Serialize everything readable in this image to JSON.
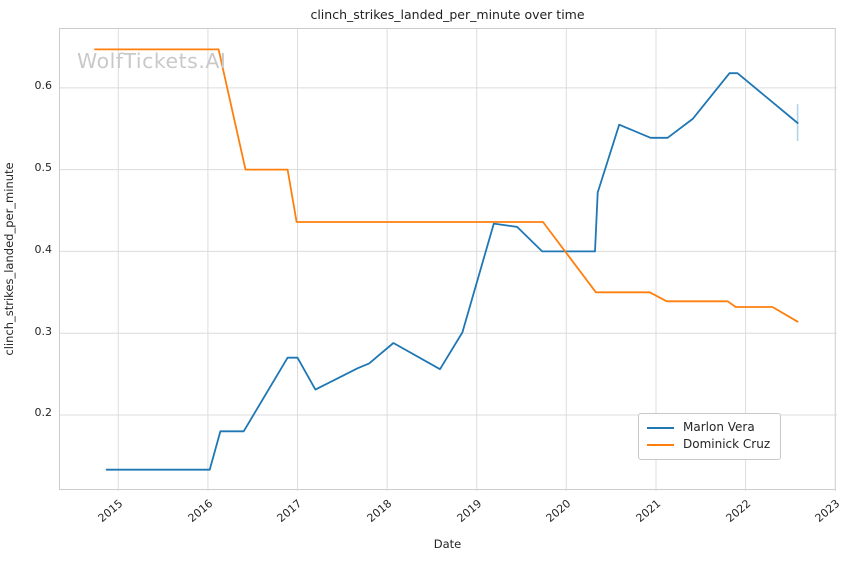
{
  "chart_data": {
    "type": "line",
    "title": "clinch_strikes_landed_per_minute over time",
    "xlabel": "Date",
    "ylabel": "clinch_strikes_landed_per_minute",
    "watermark": "WolfTickets.AI",
    "xlim": [
      2014.35,
      2023.02
    ],
    "ylim": [
      0.107,
      0.672
    ],
    "x_ticks": [
      2015,
      2016,
      2017,
      2018,
      2019,
      2020,
      2021,
      2022,
      2023
    ],
    "y_ticks": [
      0.2,
      0.3,
      0.4,
      0.5,
      0.6
    ],
    "grid": true,
    "legend_position": "lower right",
    "colors": {
      "grid": "#dcdcdc",
      "spine": "#cccccc",
      "text": "#262626",
      "watermark": "#c9c9c9",
      "background": "#ffffff"
    },
    "series": [
      {
        "name": "Marlon Vera",
        "color": "#1f77b4",
        "points": [
          [
            2014.87,
            0.133
          ],
          [
            2016.02,
            0.133
          ],
          [
            2016.14,
            0.18
          ],
          [
            2016.4,
            0.18
          ],
          [
            2016.89,
            0.27
          ],
          [
            2017.0,
            0.27
          ],
          [
            2017.2,
            0.231
          ],
          [
            2017.67,
            0.257
          ],
          [
            2017.8,
            0.263
          ],
          [
            2018.07,
            0.288
          ],
          [
            2018.59,
            0.256
          ],
          [
            2018.84,
            0.301
          ],
          [
            2019.19,
            0.434
          ],
          [
            2019.45,
            0.43
          ],
          [
            2019.73,
            0.4
          ],
          [
            2020.32,
            0.4
          ],
          [
            2020.35,
            0.472
          ],
          [
            2020.59,
            0.555
          ],
          [
            2020.94,
            0.539
          ],
          [
            2021.13,
            0.539
          ],
          [
            2021.41,
            0.562
          ],
          [
            2021.82,
            0.618
          ],
          [
            2021.91,
            0.618
          ],
          [
            2022.58,
            0.557
          ]
        ]
      },
      {
        "name": "Dominick Cruz",
        "color": "#ff7f0e",
        "points": [
          [
            2014.74,
            0.647
          ],
          [
            2016.12,
            0.647
          ],
          [
            2016.42,
            0.5
          ],
          [
            2016.89,
            0.5
          ],
          [
            2016.99,
            0.436
          ],
          [
            2019.74,
            0.436
          ],
          [
            2020.33,
            0.35
          ],
          [
            2020.93,
            0.35
          ],
          [
            2021.12,
            0.339
          ],
          [
            2021.8,
            0.339
          ],
          [
            2021.89,
            0.332
          ],
          [
            2022.3,
            0.332
          ],
          [
            2022.58,
            0.314
          ]
        ]
      }
    ],
    "error_bar": {
      "series": "Marlon Vera",
      "x": 2022.58,
      "y_low": 0.535,
      "y_high": 0.58,
      "color": "#b3d3ea"
    }
  }
}
